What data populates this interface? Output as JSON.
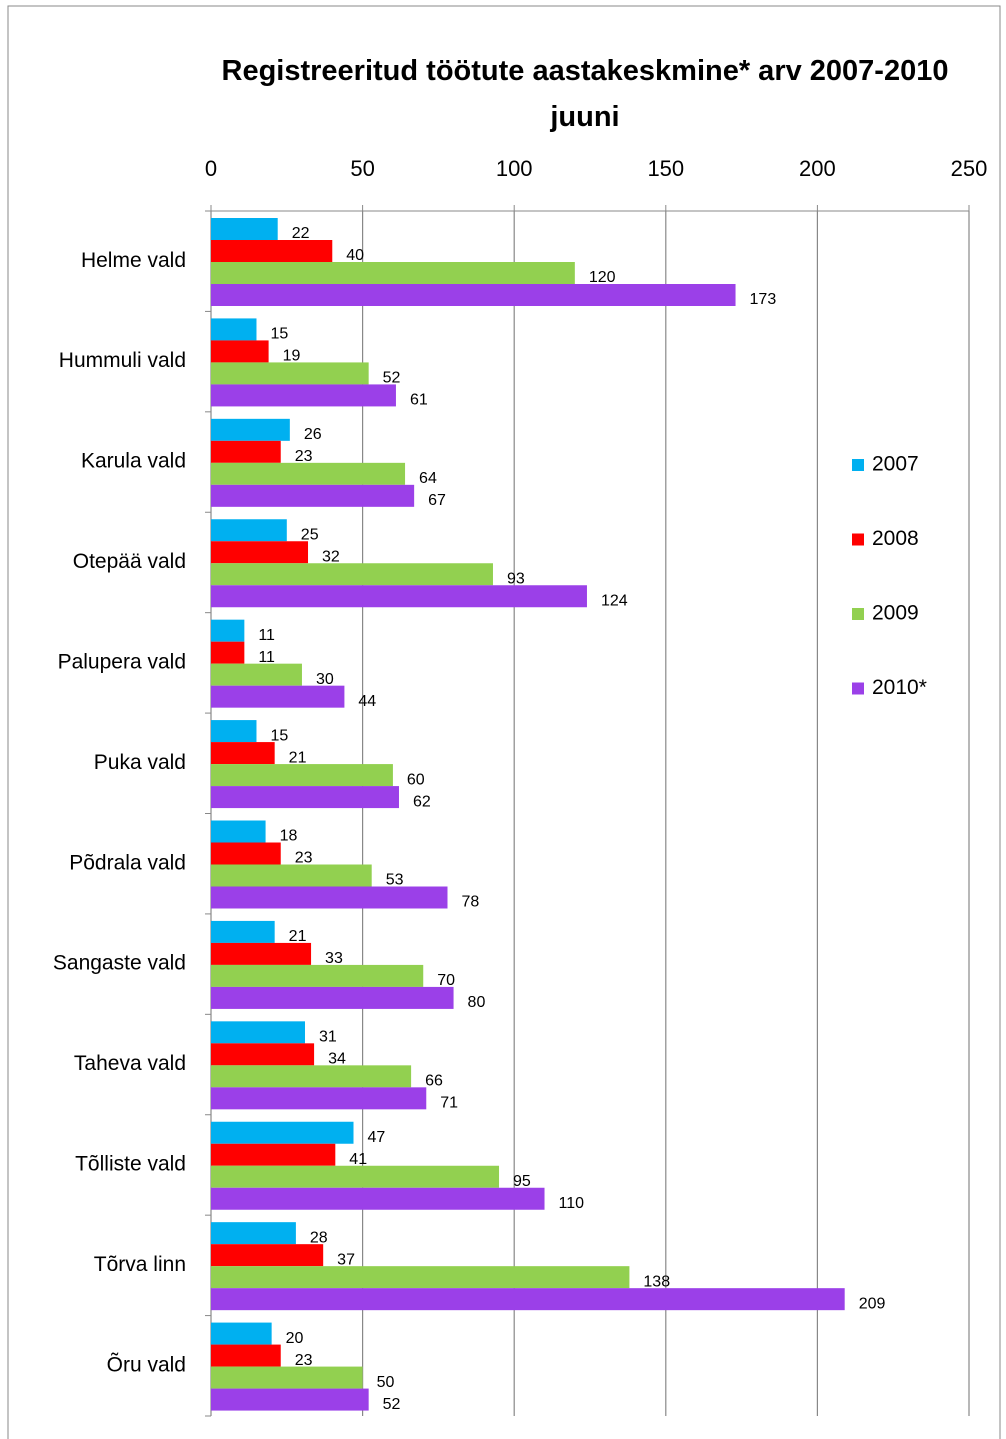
{
  "chart_data": {
    "type": "bar",
    "orientation": "horizontal",
    "title": "Registreeritud töötute aastakeskmine* arv 2007-2010 juuni",
    "categories": [
      "Helme vald",
      "Hummuli vald",
      "Karula vald",
      "Otepää vald",
      "Palupera vald",
      "Puka vald",
      "Põdrala vald",
      "Sangaste vald",
      "Taheva vald",
      "Tõlliste vald",
      "Tõrva linn",
      "Õru vald"
    ],
    "series": [
      {
        "name": "2007",
        "color": "#00b0f0",
        "values": [
          22,
          15,
          26,
          25,
          11,
          15,
          18,
          21,
          31,
          47,
          28,
          20
        ]
      },
      {
        "name": "2008",
        "color": "#ff0000",
        "values": [
          40,
          19,
          23,
          32,
          11,
          21,
          23,
          33,
          34,
          41,
          37,
          23
        ]
      },
      {
        "name": "2009",
        "color": "#92d050",
        "values": [
          120,
          52,
          64,
          93,
          30,
          60,
          53,
          70,
          66,
          95,
          138,
          50
        ]
      },
      {
        "name": "2010*",
        "color": "#9b40e8",
        "values": [
          173,
          61,
          67,
          124,
          44,
          62,
          78,
          80,
          71,
          110,
          209,
          52
        ]
      }
    ],
    "xlim": [
      0,
      250
    ],
    "xticks": [
      0,
      50,
      100,
      150,
      200,
      250
    ],
    "grid": true,
    "legend": "right"
  }
}
